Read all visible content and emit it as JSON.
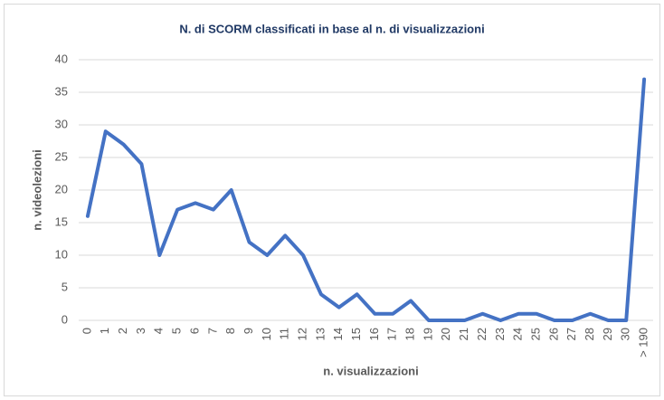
{
  "chart_data": {
    "type": "line",
    "title": "N. di SCORM classificati in base al n. di visualizzazioni",
    "x_label": "n. visualizzazioni",
    "y_label": "n. videolezioni",
    "categories": [
      "0",
      "1",
      "2",
      "3",
      "4",
      "5",
      "6",
      "7",
      "8",
      "9",
      "10",
      "11",
      "12",
      "13",
      "14",
      "15",
      "16",
      "17",
      "18",
      "19",
      "20",
      "21",
      "22",
      "23",
      "24",
      "25",
      "26",
      "27",
      "28",
      "29",
      "30",
      "> 190"
    ],
    "series": [
      {
        "name": "n. videolezioni",
        "color": "#4472c4",
        "values": [
          16,
          29,
          27,
          24,
          10,
          17,
          18,
          17,
          20,
          12,
          10,
          13,
          10,
          4,
          2,
          4,
          1,
          1,
          3,
          0,
          0,
          0,
          1,
          0,
          1,
          1,
          0,
          0,
          1,
          0,
          0,
          37
        ]
      }
    ],
    "ylim": [
      0,
      40
    ],
    "yticks": [
      0,
      5,
      10,
      15,
      20,
      25,
      30,
      35,
      40
    ],
    "grid": true
  }
}
